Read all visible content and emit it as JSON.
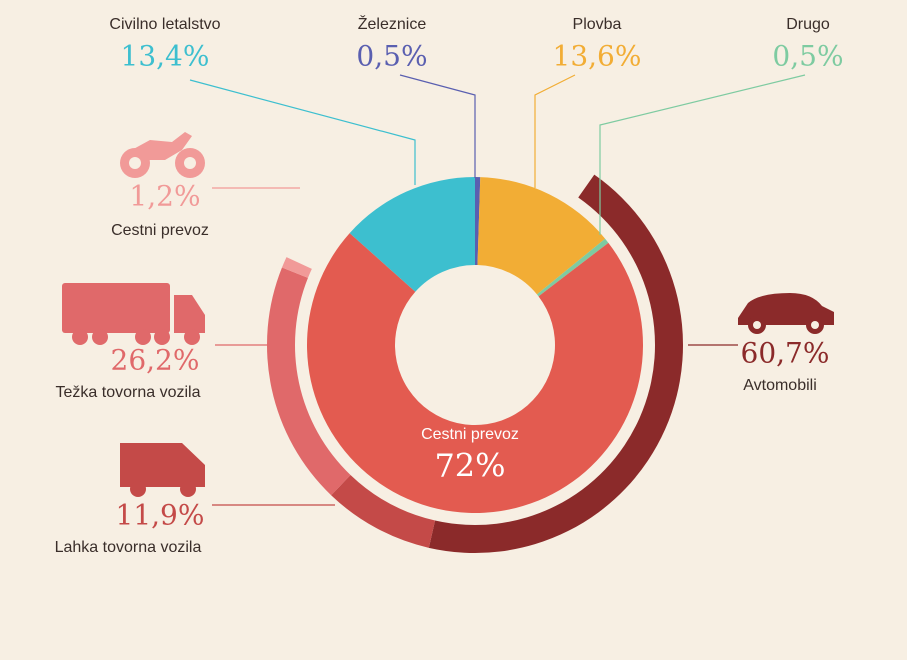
{
  "chart_data": [
    {
      "type": "donut",
      "categories": [
        "Železnice",
        "Plovba",
        "Drugo",
        "Cestni prevoz",
        "Civilno letalstvo"
      ],
      "values": [
        0.5,
        13.6,
        0.5,
        72,
        13.4
      ],
      "value_labels": [
        "0,5%",
        "13,6%",
        "0,5%",
        "72%",
        "13,4%"
      ],
      "colors": [
        "#5a5fb0",
        "#f2ad35",
        "#7ecba1",
        "#e35b50",
        "#3dbfcf"
      ]
    },
    {
      "type": "arc",
      "categories": [
        "Avtomobili",
        "Lahka tovorna vozila",
        "Težka tovorna vozila",
        "Cestni prevoz"
      ],
      "values": [
        60.7,
        11.9,
        26.2,
        1.2
      ],
      "value_labels": [
        "60,7%",
        "11,9%",
        "26,2%",
        "1,2%"
      ],
      "colors": [
        "#8b2a2a",
        "#c44a48",
        "#e0696a",
        "#f19a98"
      ]
    }
  ]
}
